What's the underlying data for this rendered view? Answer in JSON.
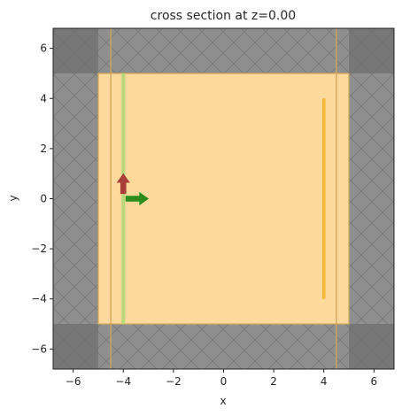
{
  "chart_data": {
    "type": "diagram",
    "title": "cross section at z=0.00",
    "xlabel": "x",
    "ylabel": "y",
    "xlim": [
      -6.8,
      6.8
    ],
    "ylim": [
      -6.8,
      6.8
    ],
    "xticks": [
      -6,
      -4,
      -2,
      0,
      2,
      4,
      6
    ],
    "yticks": [
      -6,
      -4,
      -2,
      0,
      2,
      4,
      6
    ],
    "xtick_labels": [
      "−6",
      "−4",
      "−2",
      "0",
      "2",
      "4",
      "6"
    ],
    "ytick_labels": [
      "−6",
      "−4",
      "−2",
      "0",
      "2",
      "4",
      "6"
    ],
    "grid": false,
    "colors": {
      "pml": "#8f8f8f",
      "pml_corner": "#777777",
      "sim_region": "#fdd99b",
      "region_edge": "#d2a65a",
      "source_plane": "#b7d97a",
      "monitor": "#f7b633",
      "arrow_red": "#a93f38",
      "arrow_green": "#2b8c1c"
    },
    "sim_region": {
      "x": [
        -5,
        5
      ],
      "y": [
        -5,
        5
      ]
    },
    "pml_boundary": 5,
    "vertical_lines": [
      {
        "x": -4.5,
        "y": [
          -6.8,
          6.8
        ],
        "kind": "boundary"
      },
      {
        "x": 4.5,
        "y": [
          -6.8,
          6.8
        ],
        "kind": "boundary"
      },
      {
        "x": -4.0,
        "y": [
          -5,
          5
        ],
        "kind": "source"
      },
      {
        "x": 4.0,
        "y": [
          -4,
          4
        ],
        "kind": "monitor"
      }
    ],
    "arrows": [
      {
        "kind": "polarization",
        "start": [
          -4.0,
          0.2
        ],
        "end": [
          -4.0,
          1.0
        ],
        "color": "arrow_red"
      },
      {
        "kind": "direction",
        "start": [
          -3.9,
          0.0
        ],
        "end": [
          -3.0,
          0.0
        ],
        "color": "arrow_green"
      }
    ]
  }
}
